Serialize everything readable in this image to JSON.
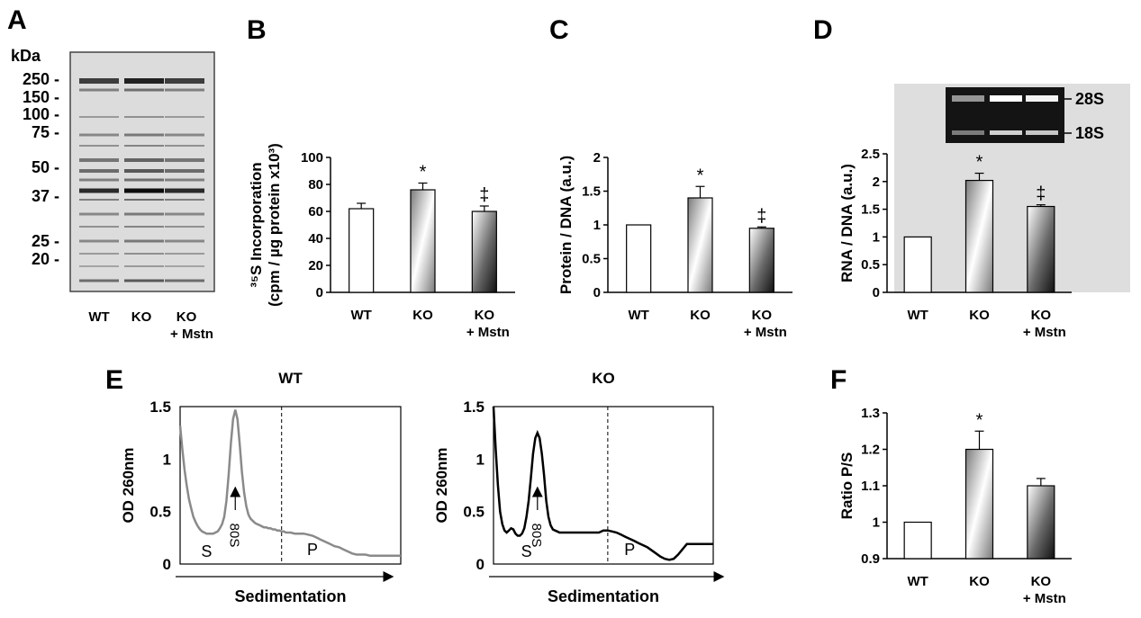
{
  "panels": {
    "A": "A",
    "B": "B",
    "C": "C",
    "D": "D",
    "E": "E",
    "F": "F"
  },
  "gel_a": {
    "unit": "kDa",
    "markers": [
      "250 -",
      "150 -",
      "100 -",
      "75 -",
      "50 -",
      "37 -",
      "25 -",
      "20 -"
    ],
    "lanes": [
      "WT",
      "KO",
      "KO",
      "+ Mstn"
    ]
  },
  "gel_d": {
    "labels": [
      "28S",
      "18S"
    ]
  },
  "categories": [
    "WT",
    "KO",
    "KO",
    "+ Mstn"
  ],
  "chart_data": [
    {
      "panel": "B",
      "type": "bar",
      "categories": [
        "WT",
        "KO",
        "KO + Mstn"
      ],
      "values": [
        62,
        76,
        60
      ],
      "errors": [
        4,
        5,
        4
      ],
      "annotations": [
        "",
        "*",
        "‡"
      ],
      "ylabel_line1": "³⁵S Incorporation",
      "ylabel_line2": "(cpm / µg protein x10³)",
      "ylim": [
        0,
        100
      ],
      "yticks": [
        "0",
        "20",
        "40",
        "60",
        "80",
        "100"
      ]
    },
    {
      "panel": "C",
      "type": "bar",
      "categories": [
        "WT",
        "KO",
        "KO + Mstn"
      ],
      "values": [
        1.0,
        1.4,
        0.95
      ],
      "errors": [
        0,
        0.17,
        0.02
      ],
      "annotations": [
        "",
        "*",
        "‡"
      ],
      "ylabel": "Protein / DNA (a.u.)",
      "ylim": [
        0,
        2
      ],
      "yticks": [
        "0",
        "0.5",
        "1",
        "1.5",
        "2"
      ]
    },
    {
      "panel": "D",
      "type": "bar",
      "categories": [
        "WT",
        "KO",
        "KO + Mstn"
      ],
      "values": [
        1.0,
        2.02,
        1.55
      ],
      "errors": [
        0,
        0.13,
        0.03
      ],
      "annotations": [
        "",
        "*",
        "‡"
      ],
      "ylabel": "RNA / DNA (a.u.)",
      "ylim": [
        0,
        2.5
      ],
      "yticks": [
        "0",
        "0.5",
        "1",
        "1.5",
        "2",
        "2.5"
      ]
    },
    {
      "panel": "E-WT",
      "type": "line",
      "title": "WT",
      "xlabel": "Sedimentation",
      "ylabel": "OD 260nm",
      "ylim": [
        0,
        1.5
      ],
      "yticks": [
        "0",
        "0.5",
        "1",
        "1.5"
      ],
      "region_labels": [
        "S",
        "P"
      ],
      "peak_label": "80S",
      "x": [
        0,
        1,
        2,
        3,
        4,
        5,
        6,
        7,
        8,
        9,
        10,
        11,
        12,
        13,
        14,
        15,
        16,
        17,
        18,
        19,
        20,
        21,
        22,
        23,
        24,
        25,
        26,
        27,
        28,
        29,
        30,
        31,
        32,
        33,
        34,
        35,
        36,
        37,
        38,
        39,
        40,
        41,
        42,
        43,
        44,
        45,
        46,
        47,
        48,
        49,
        50,
        52,
        54,
        56,
        58,
        60,
        62,
        64,
        66,
        68,
        70,
        72,
        74,
        76,
        78,
        80,
        82,
        84,
        86,
        88,
        90,
        92,
        94,
        96,
        98,
        100
      ],
      "y": [
        1.32,
        1.1,
        0.9,
        0.75,
        0.62,
        0.53,
        0.45,
        0.4,
        0.36,
        0.33,
        0.31,
        0.3,
        0.29,
        0.29,
        0.29,
        0.29,
        0.3,
        0.31,
        0.34,
        0.38,
        0.45,
        0.6,
        0.85,
        1.15,
        1.38,
        1.47,
        1.38,
        1.15,
        0.88,
        0.68,
        0.55,
        0.47,
        0.43,
        0.41,
        0.39,
        0.38,
        0.37,
        0.36,
        0.35,
        0.35,
        0.34,
        0.34,
        0.33,
        0.33,
        0.32,
        0.32,
        0.31,
        0.31,
        0.3,
        0.3,
        0.3,
        0.29,
        0.29,
        0.29,
        0.28,
        0.27,
        0.25,
        0.23,
        0.21,
        0.19,
        0.17,
        0.16,
        0.14,
        0.12,
        0.1,
        0.09,
        0.09,
        0.09,
        0.08,
        0.08,
        0.08,
        0.08,
        0.08,
        0.08,
        0.08,
        0.08
      ],
      "divider_x": 46,
      "peak_x": 25
    },
    {
      "panel": "E-KO",
      "type": "line",
      "title": "KO",
      "xlabel": "Sedimentation",
      "ylabel": "OD 260nm",
      "ylim": [
        0,
        1.5
      ],
      "yticks": [
        "0",
        "0.5",
        "1",
        "1.5"
      ],
      "region_labels": [
        "S",
        "P"
      ],
      "peak_label": "80S",
      "x": [
        0,
        1,
        2,
        3,
        4,
        5,
        6,
        7,
        8,
        9,
        10,
        11,
        12,
        13,
        14,
        15,
        16,
        17,
        18,
        19,
        20,
        21,
        22,
        23,
        24,
        25,
        26,
        27,
        28,
        29,
        30,
        31,
        32,
        33,
        34,
        35,
        36,
        37,
        38,
        39,
        40,
        41,
        42,
        43,
        44,
        45,
        46,
        48,
        50,
        52,
        54,
        56,
        58,
        60,
        62,
        64,
        66,
        68,
        70,
        72,
        74,
        76,
        78,
        80,
        82,
        84,
        86,
        88,
        90,
        92,
        94,
        96,
        98,
        100
      ],
      "y": [
        1.5,
        1.1,
        0.75,
        0.5,
        0.38,
        0.32,
        0.3,
        0.32,
        0.34,
        0.33,
        0.29,
        0.27,
        0.27,
        0.29,
        0.34,
        0.45,
        0.6,
        0.82,
        1.05,
        1.2,
        1.25,
        1.2,
        1.05,
        0.85,
        0.6,
        0.45,
        0.37,
        0.33,
        0.32,
        0.31,
        0.3,
        0.3,
        0.3,
        0.3,
        0.3,
        0.3,
        0.3,
        0.3,
        0.3,
        0.3,
        0.3,
        0.3,
        0.3,
        0.3,
        0.3,
        0.3,
        0.3,
        0.3,
        0.32,
        0.32,
        0.31,
        0.3,
        0.28,
        0.26,
        0.24,
        0.22,
        0.2,
        0.18,
        0.16,
        0.13,
        0.1,
        0.07,
        0.05,
        0.04,
        0.05,
        0.09,
        0.14,
        0.19,
        0.19,
        0.19,
        0.19,
        0.19,
        0.19,
        0.19
      ],
      "divider_x": 52,
      "peak_x": 20
    },
    {
      "panel": "F",
      "type": "bar",
      "categories": [
        "WT",
        "KO",
        "KO + Mstn"
      ],
      "values": [
        1.0,
        1.2,
        1.1
      ],
      "errors": [
        0,
        0.05,
        0.02
      ],
      "annotations": [
        "",
        "*",
        ""
      ],
      "ylabel": "Ratio P/S",
      "ylim": [
        0.9,
        1.3
      ],
      "yticks": [
        "0.9",
        "1",
        "1.1",
        "1.2",
        "1.3"
      ]
    }
  ]
}
